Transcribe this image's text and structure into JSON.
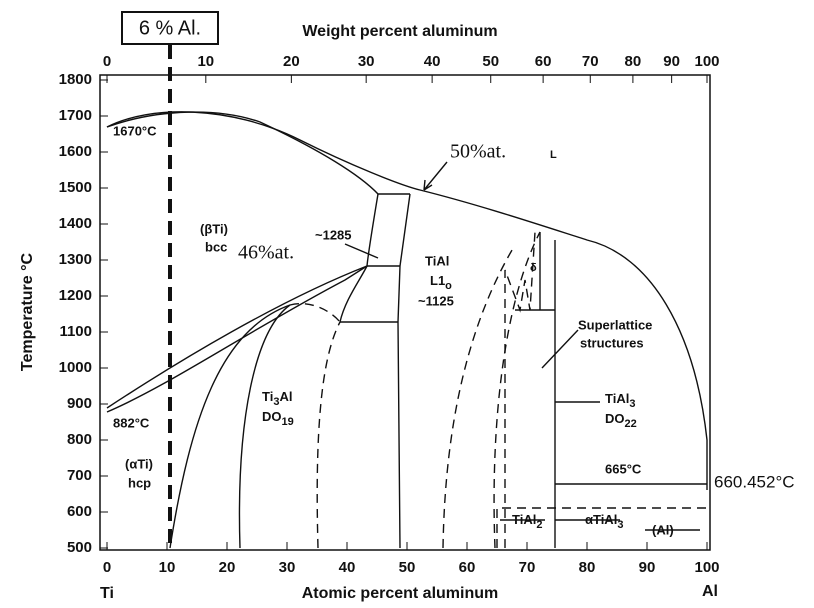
{
  "box_label": "6 % Al.",
  "top_axis": {
    "title": "Weight percent aluminum",
    "ticks": [
      0,
      10,
      20,
      30,
      40,
      50,
      60,
      70,
      80,
      90,
      100
    ]
  },
  "left_axis": {
    "title": "Temperature °C",
    "ticks": [
      500,
      600,
      700,
      800,
      900,
      1000,
      1100,
      1200,
      1300,
      1400,
      1500,
      1600,
      1700,
      1800
    ]
  },
  "bottom_axis": {
    "title": "Atomic percent aluminum",
    "ticks": [
      0,
      10,
      20,
      30,
      40,
      50,
      60,
      70,
      80,
      90,
      100
    ],
    "left_end": "Ti",
    "right_end": "Al"
  },
  "annotations": {
    "t1670": "1670°C",
    "at50": "50%at.",
    "liquid": "L",
    "beta": "(βTi)",
    "bcc": "bcc",
    "t1285": "~1285",
    "at46": "46%at.",
    "tial": "TiAl",
    "l10": [
      "L1",
      "o"
    ],
    "t1125": "~1125",
    "delta": "δ",
    "superlattice": [
      "Superlattice",
      "structures"
    ],
    "ti3al": [
      "Ti",
      "3",
      "Al"
    ],
    "do19": [
      "DO",
      "19"
    ],
    "tial3": [
      "TiAl",
      "3"
    ],
    "do22": [
      "DO",
      "22"
    ],
    "t882": "882°C",
    "alpha": "(αTi)",
    "hcp": "hcp",
    "t665": "665°C",
    "t660": "660.452°C",
    "tial2": [
      "TiAl",
      "2"
    ],
    "atial3": [
      "αTiAl",
      "3"
    ],
    "al": "(Al)"
  }
}
